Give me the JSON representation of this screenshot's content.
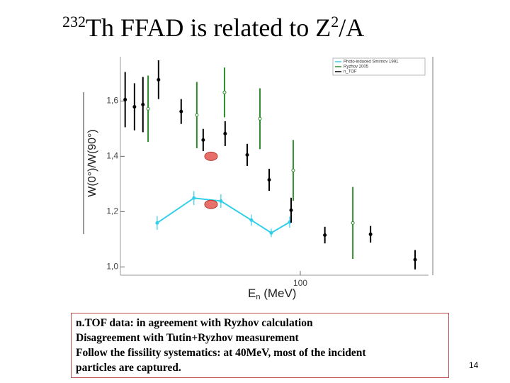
{
  "slide": {
    "title": {
      "sup": "232",
      "main": "Th FFAD is related to Z",
      "sup2": "2",
      "tail": "/A"
    },
    "note": [
      "n.TOF data: in agreement with Ryzhov calculation",
      "Disagreement with Tutin+Ryzhov measurement",
      "Follow the fissility systematics: at 40MeV, most of the incident",
      "particles are captured."
    ],
    "page_number": "14"
  },
  "chart_data": {
    "type": "scatter",
    "log_x": true,
    "x_label": {
      "main": "E",
      "sub": "n",
      "unit": " (MeV)"
    },
    "y_label": "W(0°)/W(90°)",
    "xlim": [
      12.4,
      443
    ],
    "xticks": [
      100
    ],
    "ylim": [
      0.97,
      1.76
    ],
    "yticks": [
      {
        "value": 1.0,
        "label": "1,0"
      },
      {
        "value": 1.2,
        "label": "1,2"
      },
      {
        "value": 1.4,
        "label": "1,4"
      },
      {
        "value": 1.6,
        "label": "1,6"
      }
    ],
    "series": [
      {
        "name": "Photo-induced Smirnov 1991",
        "color": "#33cfe8",
        "line": true,
        "x": [
          19.0,
          29.1,
          39.8,
          56.7,
          71.4,
          88.4
        ],
        "values": [
          1.159,
          1.249,
          1.238,
          1.169,
          1.123,
          1.162
        ],
        "errors": [
          0.025,
          0.025,
          0.025,
          0.02,
          0.015,
          0.02
        ]
      },
      {
        "name": "Ryzhov 2005",
        "color": "#2e8b2e",
        "line": false,
        "x": [
          17.1,
          30.1,
          41.5,
          62.6,
          92.1,
          184
        ],
        "values": [
          1.572,
          1.549,
          1.631,
          1.536,
          1.349,
          1.159
        ],
        "errors": [
          0.12,
          0.12,
          0.09,
          0.11,
          0.11,
          0.13
        ]
      },
      {
        "name": "n_TOF",
        "color": "#000000",
        "line": false,
        "x": [
          13.1,
          14.6,
          16.1,
          19.3,
          25.1,
          32.4,
          41.8,
          54.0,
          69.7,
          89.9,
          133,
          226,
          379
        ],
        "values": [
          1.605,
          1.579,
          1.587,
          1.677,
          1.562,
          1.459,
          1.482,
          1.405,
          1.315,
          1.205,
          1.115,
          1.118,
          1.026
        ],
        "errors": [
          0.1,
          0.085,
          0.1,
          0.07,
          0.045,
          0.04,
          0.045,
          0.04,
          0.04,
          0.045,
          0.03,
          0.03,
          0.035
        ]
      }
    ],
    "markers": {
      "color": "#e8706a",
      "x": [
        35.5,
        35.5
      ],
      "values": [
        1.4,
        1.226
      ]
    }
  }
}
